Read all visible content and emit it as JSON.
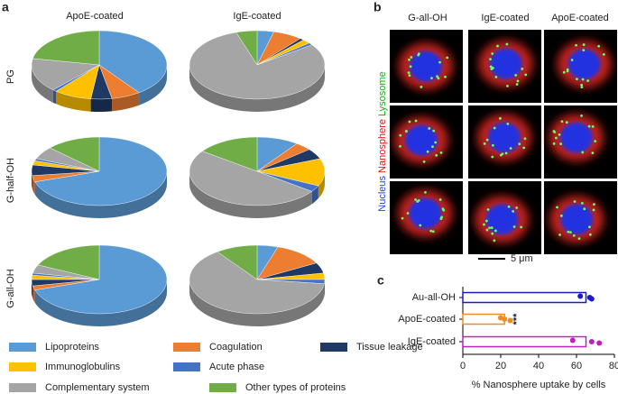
{
  "figure": {
    "panel_labels": [
      "a",
      "b",
      "c"
    ],
    "pie_columns": [
      "ApoE-coated",
      "IgE-coated"
    ],
    "pie_rows": [
      "PG",
      "G-half-OH",
      "G-all-OH"
    ],
    "image_columns": [
      "G-all-OH",
      "IgE-coated",
      "ApoE-coated"
    ],
    "stain_labels": [
      {
        "text": "Nucleus",
        "color": "#1f3fff"
      },
      {
        "text": "Nanosphere",
        "color": "#e01010"
      },
      {
        "text": "Lysosome",
        "color": "#10b010"
      }
    ],
    "scale_bar": "5 μm"
  },
  "pie_legend": {
    "categories": [
      "Lipoproteins",
      "Coagulation",
      "Tissue leakage",
      "Immunoglobulins",
      "Acute phase",
      "Complementary system",
      "Other types of proteins"
    ],
    "colors": [
      "#5b9bd5",
      "#ed7d31",
      "#1f3864",
      "#ffc000",
      "#4472c4",
      "#a5a5a5",
      "#70ad47"
    ]
  },
  "chart_data": [
    {
      "type": "pie",
      "values": [
        40,
        7,
        5,
        9,
        1,
        16,
        22
      ]
    },
    {
      "type": "pie",
      "values": [
        4,
        7,
        1,
        2,
        1,
        80,
        5
      ]
    },
    {
      "type": "pie",
      "values": [
        70,
        3,
        5,
        2,
        1,
        6,
        13
      ]
    },
    {
      "type": "pie",
      "values": [
        10,
        4,
        5,
        13,
        3,
        50,
        15
      ]
    },
    {
      "type": "pie",
      "values": [
        70,
        2,
        3,
        2,
        1,
        4,
        18
      ]
    },
    {
      "type": "pie",
      "values": [
        5,
        12,
        5,
        3,
        2,
        63,
        10
      ]
    },
    {
      "type": "hbar",
      "categories": [
        "Au-all-OH",
        "ApoE-coated",
        "IgE-coated"
      ],
      "values": [
        65,
        22,
        65
      ],
      "colors": [
        "#1a1acc",
        "#f08c1e",
        "#c020c0"
      ],
      "points": [
        [
          62,
          67,
          68
        ],
        [
          20,
          22,
          25
        ],
        [
          58,
          68,
          72
        ]
      ],
      "annotations": [
        null,
        "***",
        null
      ],
      "xlim": [
        0,
        80
      ],
      "xticks": [
        0,
        20,
        40,
        60,
        80
      ],
      "xlabel": "% Nanosphere uptake by cells"
    }
  ]
}
